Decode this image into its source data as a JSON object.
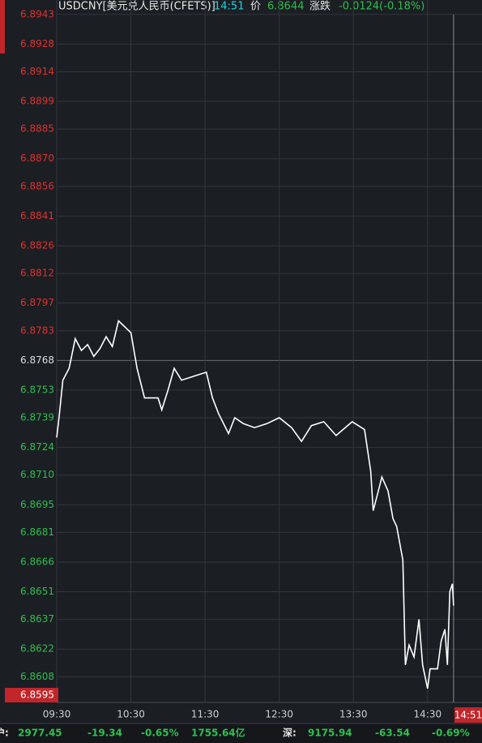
{
  "header": {
    "symbol": "USDCNY[美元兑人民币(CFETS)]",
    "time": "14:51",
    "price_label": "价",
    "price": 6.8644,
    "change_label": "涨跌",
    "change": "-0.0124(-0.18%)"
  },
  "chart_data": {
    "type": "line",
    "color": "#ffffff",
    "grid": true,
    "prev_close": 6.8768,
    "x": [
      "09:30",
      "09:32",
      "09:35",
      "09:40",
      "09:45",
      "09:50",
      "09:55",
      "10:00",
      "10:05",
      "10:10",
      "10:15",
      "10:20",
      "10:30",
      "10:35",
      "10:41",
      "10:52",
      "10:55",
      "11:00",
      "11:05",
      "11:11",
      "11:21",
      "11:31",
      "11:36",
      "11:41",
      "11:49",
      "11:54",
      "12:01",
      "12:10",
      "12:20",
      "12:30",
      "12:40",
      "12:48",
      "12:56",
      "13:06",
      "13:16",
      "13:29",
      "13:39",
      "13:44",
      "13:46",
      "13:51",
      "13:53",
      "13:58",
      "14:02",
      "14:05",
      "14:10",
      "14:12",
      "14:15",
      "14:19",
      "14:23",
      "14:26",
      "14:30",
      "14:32",
      "14:38",
      "14:41",
      "14:44",
      "14:46",
      "14:48",
      "14:50",
      "14:51"
    ],
    "values": [
      6.8729,
      6.874,
      6.8758,
      6.8764,
      6.8779,
      6.8773,
      6.8776,
      6.877,
      6.8774,
      6.878,
      6.8775,
      6.8788,
      6.8782,
      6.8764,
      6.8749,
      6.8749,
      6.8743,
      6.8753,
      6.8764,
      6.8758,
      6.876,
      6.8762,
      6.8749,
      6.8741,
      6.8731,
      6.8739,
      6.8736,
      6.8734,
      6.8736,
      6.8739,
      6.8734,
      6.8727,
      6.8735,
      6.8737,
      6.873,
      6.8737,
      6.8733,
      6.8712,
      6.8692,
      6.8704,
      6.8709,
      6.8702,
      6.8688,
      6.8684,
      6.8667,
      6.8614,
      6.8624,
      6.8618,
      6.8637,
      6.8614,
      6.8602,
      6.8612,
      6.8612,
      6.8626,
      6.8632,
      6.8614,
      6.8651,
      6.8655,
      6.8644
    ],
    "xlim": [
      "09:30",
      "15:14"
    ],
    "xticks": [
      "09:30",
      "10:30",
      "11:30",
      "12:30",
      "13:30",
      "14:30"
    ],
    "ylim": [
      6.8595,
      6.8947
    ],
    "yticks": [
      6.8943,
      6.8928,
      6.8914,
      6.8899,
      6.8885,
      {
        "value": 6.887,
        "label": "6.8870"
      },
      6.8856,
      6.8841,
      6.8826,
      6.8812,
      6.8797,
      6.8783,
      6.8768,
      6.8753,
      6.8739,
      6.8724,
      {
        "value": 6.871,
        "label": "6.8710"
      },
      6.8695,
      6.8681,
      6.8666,
      6.8651,
      6.8637,
      6.8622,
      6.8608
    ]
  },
  "footer": {
    "sh_label": "沪:",
    "sh_index": "2977.45",
    "sh_change": "-19.34",
    "sh_pct": "-0.65%",
    "sh_turnover": "1755.64亿",
    "sz_label": "深:",
    "sz_index": "9175.94",
    "sz_change": "-63.54",
    "sz_pct": "-0.69%"
  }
}
